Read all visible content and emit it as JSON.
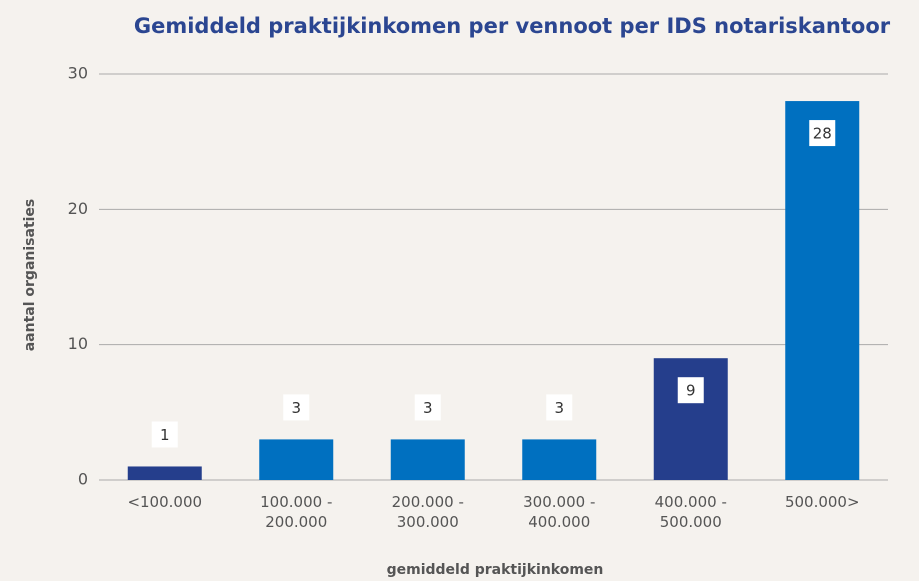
{
  "chart_data": {
    "type": "bar",
    "title": "Gemiddeld praktijkinkomen per vennoot per IDS notariskantoor",
    "x_label": "gemiddeld praktijkinkomen",
    "y_label": "aantal organisaties",
    "categories": [
      "<100.000",
      "100.000 - 200.000",
      "200.000 - 300.000",
      "300.000 - 400.000",
      "400.000 - 500.000",
      "500.000>"
    ],
    "values": [
      1,
      3,
      3,
      3,
      9,
      28
    ],
    "colors": [
      "#253e8c",
      "#0070c0",
      "#0070c0",
      "#0070c0",
      "#253e8c",
      "#0070c0"
    ],
    "ylim": [
      0,
      30
    ],
    "yticks": [
      0,
      10,
      20,
      30
    ],
    "grid": true
  }
}
